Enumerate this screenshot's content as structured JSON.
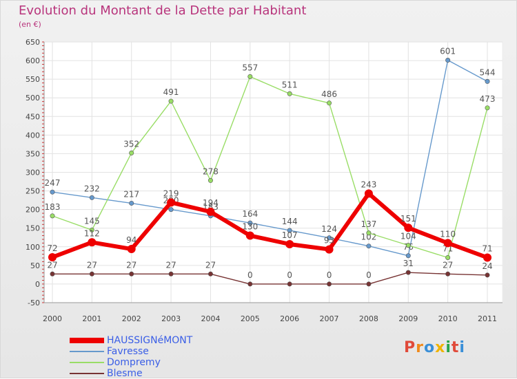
{
  "title": "Evolution du Montant de la Dette par Habitant",
  "unit_label": "(en €)",
  "logo_text": "Proxiti",
  "chart_data": {
    "type": "line",
    "title": "Evolution du Montant de la Dette par Habitant",
    "ylabel": "(en €)",
    "xlabel": "",
    "ylim": [
      -50,
      650
    ],
    "yticks": [
      -50,
      0,
      50,
      100,
      150,
      200,
      250,
      300,
      350,
      400,
      450,
      500,
      550,
      600,
      650
    ],
    "x": [
      "2000",
      "2001",
      "2002",
      "2003",
      "2004",
      "2005",
      "2006",
      "2007",
      "2008",
      "2009",
      "2010",
      "2011"
    ],
    "grid": true,
    "legend_position": "bottom-left",
    "series": [
      {
        "name": "HAUSSIGNéMONT",
        "color": "#ee0000",
        "values": [
          72,
          112,
          94,
          219,
          194,
          130,
          107,
          93,
          243,
          151,
          110,
          71
        ]
      },
      {
        "name": "Favresse",
        "color": "#6699cc",
        "values": [
          247,
          232,
          217,
          200,
          183,
          164,
          144,
          124,
          102,
          76,
          601,
          544
        ]
      },
      {
        "name": "Dompremy",
        "color": "#99dd66",
        "values": [
          183,
          145,
          352,
          491,
          278,
          557,
          511,
          486,
          137,
          104,
          71,
          473
        ]
      },
      {
        "name": "Blesme",
        "color": "#773333",
        "values": [
          27,
          27,
          27,
          27,
          27,
          0,
          0,
          0,
          0,
          31,
          27,
          24
        ]
      }
    ]
  }
}
